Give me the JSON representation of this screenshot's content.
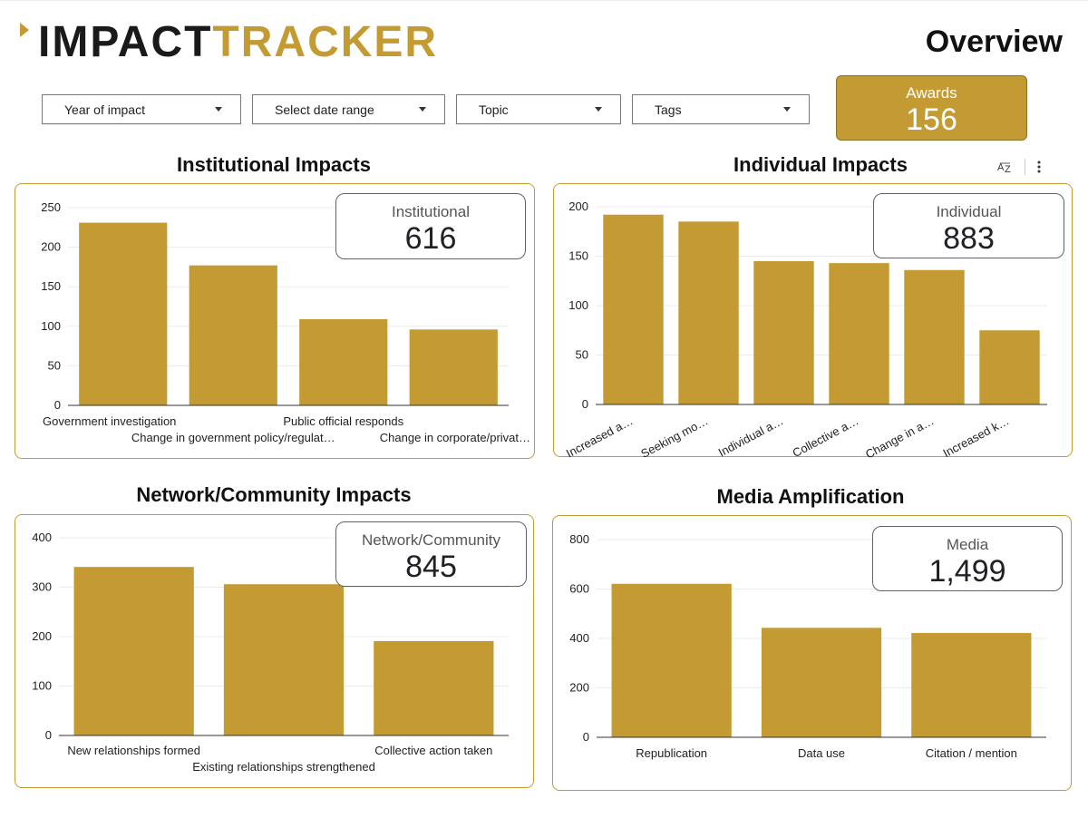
{
  "logo": {
    "part1": "IMPACT",
    "part2": "TRACKER"
  },
  "page_title": "Overview",
  "filters": [
    {
      "label": "Year of impact",
      "left": 46,
      "width": 220
    },
    {
      "label": "Select date range",
      "left": 278,
      "width": 213
    },
    {
      "label": "Topic",
      "left": 503,
      "width": 182
    },
    {
      "label": "Tags",
      "left": 697,
      "width": 196
    }
  ],
  "awards": {
    "label": "Awards",
    "value": "156"
  },
  "sections": {
    "institutional": {
      "title": "Institutional Impacts",
      "kpi_label": "Institutional",
      "kpi_value": "616"
    },
    "individual": {
      "title": "Individual Impacts",
      "kpi_label": "Individual",
      "kpi_value": "883"
    },
    "network": {
      "title": "Network/Community Impacts",
      "kpi_label": "Network/Community",
      "kpi_value": "845"
    },
    "media": {
      "title": "Media Amplification",
      "kpi_label": "Media",
      "kpi_value": "1,499"
    }
  },
  "icons": {
    "sort": "sort-az-icon",
    "more": "more-vert-icon"
  },
  "colors": {
    "accent": "#c49a33"
  },
  "chart_data": [
    {
      "id": "institutional",
      "type": "bar",
      "title": "Institutional Impacts",
      "categories": [
        "Government investigation",
        "Change in government policy/regulat…",
        "Public official responds",
        "Change in corporate/privat…"
      ],
      "values": [
        231,
        177,
        109,
        96
      ],
      "yticks": [
        0,
        50,
        100,
        150,
        200,
        250
      ],
      "ylim": [
        0,
        250
      ]
    },
    {
      "id": "individual",
      "type": "bar",
      "title": "Individual Impacts",
      "categories": [
        "Increased a…",
        "Seeking mo…",
        "Individual a…",
        "Collective a…",
        "Change in a…",
        "Increased k…"
      ],
      "values": [
        192,
        185,
        145,
        143,
        136,
        75
      ],
      "yticks": [
        0,
        50,
        100,
        150,
        200
      ],
      "ylim": [
        0,
        200
      ]
    },
    {
      "id": "network",
      "type": "bar",
      "title": "Network/Community Impacts",
      "categories": [
        "New relationships formed",
        "Existing relationships strengthened",
        "Collective action taken"
      ],
      "values": [
        341,
        306,
        191
      ],
      "yticks": [
        0,
        100,
        200,
        300,
        400
      ],
      "ylim": [
        0,
        400
      ]
    },
    {
      "id": "media",
      "type": "bar",
      "title": "Media Amplification",
      "categories": [
        "Republication",
        "Data use",
        "Citation / mention"
      ],
      "values": [
        621,
        443,
        422
      ],
      "yticks": [
        0,
        200,
        400,
        600,
        800
      ],
      "ylim": [
        0,
        800
      ]
    }
  ]
}
